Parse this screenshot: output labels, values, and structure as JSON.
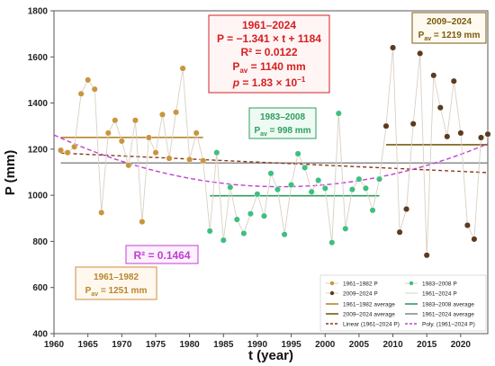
{
  "chart_data": {
    "type": "scatter",
    "xlabel": "t (year)",
    "ylabel": "P (mm)",
    "xlim": [
      1960,
      2024
    ],
    "ylim": [
      400,
      1800
    ],
    "xticks": [
      "1960",
      "1965",
      "1970",
      "1975",
      "1980",
      "1985",
      "1990",
      "1995",
      "2000",
      "2005",
      "2010",
      "2015",
      "2020"
    ],
    "yticks": [
      "400",
      "600",
      "800",
      "1000",
      "1200",
      "1400",
      "1600",
      "1800"
    ],
    "grid": false,
    "colors": {
      "p1": "#c8963c",
      "p2": "#5c3b1e",
      "p3": "#3fbf7f",
      "connector": "#d9d0c4",
      "avg1": "#b8862e",
      "avg2": "#7a5b10",
      "avg3": "#2e9e5e",
      "avgAll": "#8c8c8c",
      "linear": "#8b3a1a",
      "poly": "#c040d0",
      "boxRed": "#d62020",
      "boxGreen": "#2e9e5e",
      "boxBrown": "#7a5b10",
      "boxPurple": "#c040d0",
      "boxOrange": "#d08a40"
    },
    "series": [
      {
        "name": "1961–1982 P",
        "x": [
          1961,
          1962,
          1963,
          1964,
          1965,
          1966,
          1967,
          1968,
          1969,
          1970,
          1971,
          1972,
          1973,
          1974,
          1975,
          1976,
          1977,
          1978,
          1979,
          1980,
          1981,
          1982
        ],
        "y": [
          1195,
          1185,
          1210,
          1440,
          1500,
          1460,
          925,
          1270,
          1325,
          1235,
          1130,
          1325,
          885,
          1250,
          1185,
          1350,
          1160,
          1360,
          1550,
          1155,
          1270,
          1150
        ]
      },
      {
        "name": "1983–2008 P",
        "x": [
          1983,
          1984,
          1985,
          1986,
          1987,
          1988,
          1989,
          1990,
          1991,
          1992,
          1993,
          1994,
          1995,
          1996,
          1997,
          1998,
          1999,
          2000,
          2001,
          2002,
          2003,
          2004,
          2005,
          2006,
          2007,
          2008
        ],
        "y": [
          845,
          1185,
          805,
          1035,
          895,
          835,
          920,
          1005,
          910,
          1095,
          1025,
          830,
          1045,
          1180,
          1120,
          1015,
          1065,
          1030,
          795,
          1355,
          855,
          1025,
          1070,
          1030,
          935,
          1070
        ]
      },
      {
        "name": "2009–2024 P",
        "x": [
          2009,
          2010,
          2011,
          2012,
          2013,
          2014,
          2015,
          2016,
          2017,
          2018,
          2019,
          2020,
          2021,
          2022,
          2023,
          2024
        ],
        "y": [
          1300,
          1640,
          840,
          940,
          1310,
          1615,
          740,
          1520,
          1380,
          1255,
          1495,
          1270,
          870,
          810,
          1250,
          1265
        ]
      },
      {
        "name": "1961–1982 average",
        "x": [
          1961,
          1982
        ],
        "y": [
          1251,
          1251
        ]
      },
      {
        "name": "1983–2008 average",
        "x": [
          1983,
          2008
        ],
        "y": [
          998,
          998
        ]
      },
      {
        "name": "2009–2024 average",
        "x": [
          2009,
          2024
        ],
        "y": [
          1219,
          1219
        ]
      },
      {
        "name": "1961–2024 average",
        "x": [
          1961,
          2024
        ],
        "y": [
          1140,
          1140
        ]
      },
      {
        "name": "Linear (1961–2024 P)",
        "slope": -1.341,
        "intercept": 1184,
        "x": [
          1961,
          2024
        ]
      },
      {
        "name": "Poly. (1961–2024 P)",
        "x": [
          1961,
          2024
        ]
      }
    ],
    "legend_placement": "bottom-right",
    "legend": [
      "1961–1982 P",
      "1983–2008 P",
      "2009–2024 P",
      "1961–2024 P",
      "1961–1982 average",
      "1983–2008 average",
      "2009–2024 average",
      "1961–2024 average",
      "Linear (1961–2024 P)",
      "Poly. (1961–2024 P)"
    ],
    "annotations": {
      "stats_overall": {
        "title": "1961–2024",
        "eq": "P = −1.341 × t + 1184",
        "r2": "R² = 0.0122",
        "pav_label": "P",
        "pav_sub": "av",
        "pav_value": " = 1140 mm",
        "p_label": "p",
        "p_value": " = 1.83 × 10",
        "p_exp": "−1"
      },
      "period_1983": {
        "title": "1983–2008",
        "pav_label": "P",
        "pav_sub": "av",
        "pav_value": " = 998 mm"
      },
      "period_2009": {
        "title": "2009–2024",
        "pav_label": "P",
        "pav_sub": "av",
        "pav_value": " = 1219 mm"
      },
      "period_1961": {
        "title": "1961–1982",
        "pav_label": "P",
        "pav_sub": "av",
        "pav_value": " = 1251 mm"
      },
      "poly_r2": "R² = 0.1464"
    }
  }
}
